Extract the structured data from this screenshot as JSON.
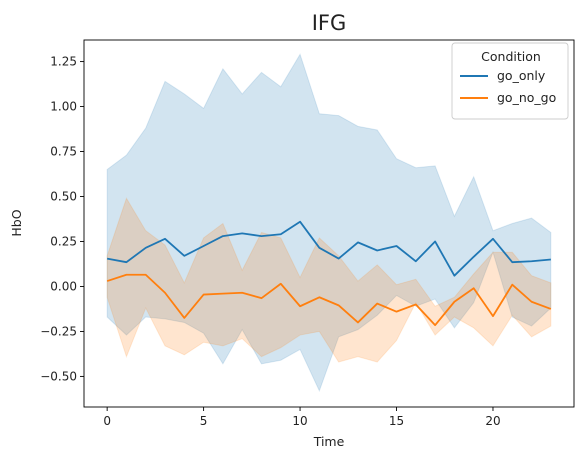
{
  "chart_data": {
    "type": "line",
    "title": "IFG",
    "xlabel": "Time",
    "ylabel": "HbO",
    "xlim": [
      -1.2,
      24.2
    ],
    "ylim": [
      -0.67,
      1.37
    ],
    "xticks": [
      0,
      5,
      10,
      15,
      20
    ],
    "xtick_labels": [
      "0",
      "5",
      "10",
      "15",
      "20"
    ],
    "yticks": [
      -0.5,
      -0.25,
      0.0,
      0.25,
      0.5,
      0.75,
      1.0,
      1.25
    ],
    "ytick_labels": [
      "−0.50",
      "−0.25",
      "0.00",
      "0.25",
      "0.50",
      "0.75",
      "1.00",
      "1.25"
    ],
    "grid": false,
    "legend": {
      "title": "Condition",
      "position": "top-right"
    },
    "x": [
      0,
      1,
      2,
      3,
      4,
      5,
      6,
      7,
      8,
      9,
      10,
      11,
      12,
      13,
      14,
      15,
      16,
      17,
      18,
      19,
      20,
      21,
      22,
      23
    ],
    "series": [
      {
        "name": "go_only",
        "color": "#1f77b4",
        "values": [
          0.155,
          0.135,
          0.215,
          0.265,
          0.17,
          0.225,
          0.28,
          0.295,
          0.28,
          0.29,
          0.36,
          0.215,
          0.155,
          0.245,
          0.2,
          0.225,
          0.14,
          0.25,
          0.06,
          0.165,
          0.265,
          0.135,
          0.14,
          0.15
        ],
        "ci_upper": [
          0.65,
          0.73,
          0.88,
          1.14,
          1.07,
          0.99,
          1.21,
          1.07,
          1.19,
          1.11,
          1.29,
          0.96,
          0.95,
          0.89,
          0.87,
          0.71,
          0.66,
          0.67,
          0.39,
          0.61,
          0.31,
          0.35,
          0.38,
          0.3
        ],
        "ci_lower": [
          -0.17,
          -0.27,
          -0.17,
          -0.18,
          -0.2,
          -0.26,
          -0.43,
          -0.24,
          -0.43,
          -0.41,
          -0.35,
          -0.58,
          -0.28,
          -0.24,
          -0.16,
          -0.05,
          -0.11,
          -0.07,
          -0.23,
          -0.09,
          0.19,
          -0.17,
          -0.22,
          -0.12
        ]
      },
      {
        "name": "go_no_go",
        "color": "#ff7f0e",
        "values": [
          0.03,
          0.065,
          0.065,
          -0.035,
          -0.175,
          -0.045,
          -0.04,
          -0.035,
          -0.065,
          0.015,
          -0.11,
          -0.06,
          -0.105,
          -0.2,
          -0.095,
          -0.14,
          -0.1,
          -0.215,
          -0.085,
          -0.01,
          -0.165,
          0.01,
          -0.085,
          -0.125
        ],
        "ci_upper": [
          0.17,
          0.49,
          0.31,
          0.23,
          0.02,
          0.27,
          0.35,
          0.09,
          0.3,
          0.27,
          0.05,
          0.27,
          0.17,
          0.03,
          0.12,
          0.01,
          0.04,
          -0.11,
          -0.06,
          0.07,
          0.19,
          0.19,
          0.06,
          0.02
        ],
        "ci_lower": [
          -0.06,
          -0.39,
          -0.12,
          -0.33,
          -0.38,
          -0.31,
          -0.33,
          -0.29,
          -0.39,
          -0.34,
          -0.27,
          -0.25,
          -0.42,
          -0.39,
          -0.42,
          -0.3,
          -0.09,
          -0.27,
          -0.17,
          -0.23,
          -0.33,
          -0.16,
          -0.28,
          -0.22
        ]
      }
    ]
  }
}
